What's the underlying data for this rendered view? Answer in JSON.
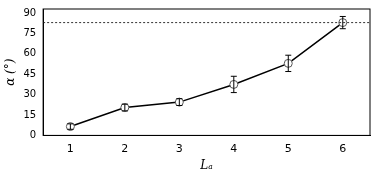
{
  "chart_data": {
    "type": "line",
    "x_label": "Lₐ",
    "y_label": "α (°)",
    "categories": [
      "1",
      "2",
      "3",
      "4",
      "5",
      "6"
    ],
    "values": [
      6.5,
      20.5,
      24.5,
      37.5,
      53,
      83
    ],
    "errors": [
      2,
      2.5,
      2.5,
      6,
      6,
      4.5
    ],
    "hline": 83,
    "color": "#000000",
    "marker": "circle",
    "line_style": "solid",
    "ylim": [
      0,
      93
    ],
    "yticks": [
      0,
      15,
      30,
      45,
      60,
      75,
      90
    ],
    "grid": false
  }
}
